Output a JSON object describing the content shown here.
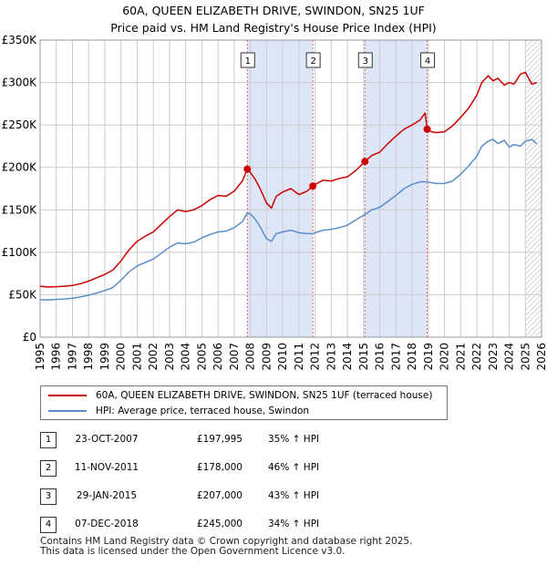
{
  "title_line1": "60A, QUEEN ELIZABETH DRIVE, SWINDON, SN25 1UF",
  "title_line2": "Price paid vs. HM Land Registry's House Price Index (HPI)",
  "colors": {
    "property": "#cc0000",
    "hpi": "#5b8ec9",
    "shade": "#dde6f7",
    "grid": "#cccccc",
    "vline": "#e06666"
  },
  "chart_data": {
    "type": "line",
    "title": "Price paid vs. HM Land Registry's House Price Index (HPI)",
    "xlabel": "",
    "ylabel": "",
    "xlim": [
      1995,
      2026
    ],
    "ylim": [
      0,
      350000
    ],
    "yticks": [
      0,
      50000,
      100000,
      150000,
      200000,
      250000,
      300000,
      350000
    ],
    "ytick_labels": [
      "£0",
      "£50K",
      "£100K",
      "£150K",
      "£200K",
      "£250K",
      "£300K",
      "£350K"
    ],
    "xticks": [
      1995,
      1996,
      1997,
      1998,
      1999,
      2000,
      2001,
      2002,
      2003,
      2004,
      2005,
      2006,
      2007,
      2008,
      2009,
      2010,
      2011,
      2012,
      2013,
      2014,
      2015,
      2016,
      2017,
      2018,
      2019,
      2020,
      2021,
      2022,
      2023,
      2024,
      2025,
      2026
    ],
    "grid": true,
    "shaded_ranges": [
      [
        2007.81,
        2011.86
      ],
      [
        2015.08,
        2018.93
      ]
    ],
    "future_hatch_from": 2025.0,
    "series": [
      {
        "name": "60A, QUEEN ELIZABETH DRIVE, SWINDON, SN25 1UF (terraced house)",
        "x": [
          1995.0,
          1995.5,
          1996.0,
          1996.5,
          1997.0,
          1997.5,
          1998.0,
          1998.5,
          1999.0,
          1999.5,
          2000.0,
          2000.5,
          2001.0,
          2001.5,
          2002.0,
          2002.5,
          2003.0,
          2003.5,
          2004.0,
          2004.5,
          2005.0,
          2005.5,
          2006.0,
          2006.5,
          2007.0,
          2007.5,
          2007.81,
          2008.0,
          2008.3,
          2008.6,
          2009.0,
          2009.3,
          2009.6,
          2010.0,
          2010.5,
          2011.0,
          2011.5,
          2011.86,
          2012.0,
          2012.5,
          2013.0,
          2013.5,
          2014.0,
          2014.5,
          2015.08,
          2015.5,
          2016.0,
          2016.5,
          2017.0,
          2017.5,
          2018.0,
          2018.5,
          2018.8,
          2018.93,
          2019.2,
          2019.5,
          2020.0,
          2020.5,
          2021.0,
          2021.5,
          2022.0,
          2022.3,
          2022.7,
          2023.0,
          2023.3,
          2023.7,
          2024.0,
          2024.3,
          2024.7,
          2025.0,
          2025.4,
          2025.7
        ],
        "values": [
          60000,
          59000,
          59500,
          60000,
          61000,
          63000,
          66000,
          70000,
          74000,
          79000,
          90000,
          103000,
          113000,
          119000,
          124000,
          133000,
          142000,
          150000,
          148000,
          150000,
          155000,
          162000,
          167000,
          166000,
          172000,
          184000,
          197995,
          194000,
          186000,
          175000,
          158000,
          152000,
          166000,
          171000,
          175000,
          168000,
          172000,
          178000,
          180000,
          185000,
          184000,
          187000,
          189000,
          196000,
          207000,
          214000,
          218000,
          228000,
          237000,
          245000,
          250000,
          256000,
          264000,
          245000,
          242000,
          241000,
          242000,
          249000,
          259000,
          270000,
          285000,
          300000,
          308000,
          302000,
          305000,
          297000,
          300000,
          298000,
          310000,
          312000,
          298000,
          300000
        ]
      },
      {
        "name": "HPI: Average price, terraced house, Swindon",
        "x": [
          1995.0,
          1995.5,
          1996.0,
          1996.5,
          1997.0,
          1997.5,
          1998.0,
          1998.5,
          1999.0,
          1999.5,
          2000.0,
          2000.5,
          2001.0,
          2001.5,
          2002.0,
          2002.5,
          2003.0,
          2003.5,
          2004.0,
          2004.5,
          2005.0,
          2005.5,
          2006.0,
          2006.5,
          2007.0,
          2007.5,
          2007.81,
          2008.0,
          2008.3,
          2008.6,
          2009.0,
          2009.3,
          2009.6,
          2010.0,
          2010.5,
          2011.0,
          2011.5,
          2011.86,
          2012.0,
          2012.5,
          2013.0,
          2013.5,
          2014.0,
          2014.5,
          2015.08,
          2015.5,
          2016.0,
          2016.5,
          2017.0,
          2017.5,
          2018.0,
          2018.5,
          2018.93,
          2019.2,
          2019.5,
          2020.0,
          2020.5,
          2021.0,
          2021.5,
          2022.0,
          2022.3,
          2022.7,
          2023.0,
          2023.3,
          2023.7,
          2024.0,
          2024.3,
          2024.7,
          2025.0,
          2025.4,
          2025.7
        ],
        "values": [
          44000,
          44000,
          44500,
          45000,
          46000,
          47500,
          49500,
          52000,
          55000,
          58500,
          67000,
          77000,
          84000,
          88000,
          92000,
          99000,
          106000,
          111000,
          110000,
          112000,
          117000,
          121000,
          124000,
          125000,
          129000,
          136000,
          146500,
          145000,
          139000,
          130000,
          116000,
          113000,
          122000,
          124000,
          126000,
          123000,
          122000,
          122000,
          123000,
          126000,
          127000,
          129000,
          132000,
          138000,
          144500,
          150000,
          153000,
          160000,
          167000,
          175000,
          180000,
          183000,
          183000,
          182000,
          181000,
          181000,
          184000,
          192000,
          202000,
          213000,
          225000,
          231000,
          233000,
          228000,
          232000,
          224000,
          227000,
          225000,
          231000,
          233000,
          228000
        ]
      }
    ],
    "sales": [
      {
        "label": "1",
        "x": 2007.81,
        "price": 197995
      },
      {
        "label": "2",
        "x": 2011.86,
        "price": 178000
      },
      {
        "label": "3",
        "x": 2015.08,
        "price": 207000
      },
      {
        "label": "4",
        "x": 2018.93,
        "price": 245000
      }
    ]
  },
  "legend": {
    "property_label": "60A, QUEEN ELIZABETH DRIVE, SWINDON, SN25 1UF (terraced house)",
    "hpi_label": "HPI: Average price, terraced house, Swindon"
  },
  "transactions": [
    {
      "num": "1",
      "date": "23-OCT-2007",
      "price": "£197,995",
      "hpi": "35% ↑ HPI"
    },
    {
      "num": "2",
      "date": "11-NOV-2011",
      "price": "£178,000",
      "hpi": "46% ↑ HPI"
    },
    {
      "num": "3",
      "date": "29-JAN-2015",
      "price": "£207,000",
      "hpi": "43% ↑ HPI"
    },
    {
      "num": "4",
      "date": "07-DEC-2018",
      "price": "£245,000",
      "hpi": "34% ↑ HPI"
    }
  ],
  "footer": {
    "line1": "Contains HM Land Registry data © Crown copyright and database right 2025.",
    "line2": "This data is licensed under the Open Government Licence v3.0."
  }
}
